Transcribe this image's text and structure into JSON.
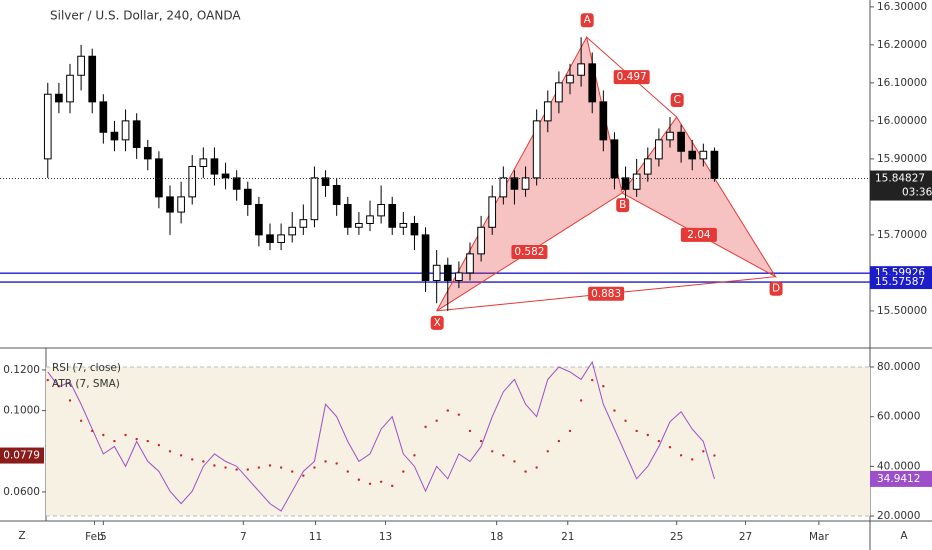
{
  "chart_data": {
    "type": "candlestick",
    "title": "Silver / U.S. Dollar, 240, OANDA",
    "xlim": [
      -4.3,
      74
    ],
    "xticks": [
      {
        "value": 4.2,
        "label": "Feb"
      },
      5,
      {
        "value": 17.6,
        "label": "7"
      },
      {
        "value": 24.1,
        "label": "11"
      },
      {
        "value": 30.4,
        "label": "13"
      },
      {
        "value": 40.4,
        "label": "18"
      },
      {
        "value": 46.8,
        "label": "21"
      },
      {
        "value": 56.6,
        "label": "25"
      },
      {
        "value": 62.8,
        "label": "27"
      },
      {
        "value": 69.4,
        "label": "Mar"
      }
    ],
    "ylim": [
      15.405,
      16.318
    ],
    "yticks": [
      {
        "value": 15.5,
        "label": "15.50000"
      },
      {
        "value": 15.7,
        "label": "15.70000"
      },
      {
        "value": 15.9,
        "label": "15.90000"
      },
      {
        "value": 16,
        "label": "16.00000"
      },
      {
        "value": 16.1,
        "label": "16.10000"
      },
      {
        "value": 16.2,
        "label": "16.20000"
      },
      {
        "value": 16.3,
        "label": "16.30000"
      }
    ],
    "open": [
      15.9,
      16.07,
      16.05,
      16.12,
      16.17,
      16.05,
      15.97,
      15.95,
      16.0,
      15.93,
      15.9,
      15.8,
      15.76,
      15.8,
      15.88,
      15.9,
      15.86,
      15.85,
      15.82,
      15.78,
      15.7,
      15.68,
      15.7,
      15.72,
      15.74,
      15.85,
      15.83,
      15.78,
      15.72,
      15.73,
      15.75,
      15.78,
      15.72,
      15.73,
      15.7,
      15.58,
      15.62,
      15.58,
      15.6,
      15.65,
      15.72,
      15.8,
      15.85,
      15.82,
      15.85,
      16.0,
      16.05,
      16.1,
      16.12,
      16.15,
      16.05,
      15.95,
      15.85,
      15.82,
      15.86,
      15.9,
      15.95,
      15.97,
      15.92,
      15.9,
      15.92
    ],
    "high": [
      16.1,
      16.1,
      16.15,
      16.2,
      16.19,
      16.07,
      16.0,
      16.03,
      16.02,
      15.95,
      15.92,
      15.83,
      15.84,
      15.91,
      15.93,
      15.93,
      15.89,
      15.87,
      15.84,
      15.8,
      15.73,
      15.73,
      15.76,
      15.78,
      15.88,
      15.87,
      15.85,
      15.8,
      15.76,
      15.79,
      15.83,
      15.8,
      15.76,
      15.75,
      15.72,
      15.66,
      15.64,
      15.63,
      15.68,
      15.75,
      15.83,
      15.88,
      15.87,
      15.88,
      16.03,
      16.08,
      16.13,
      16.15,
      16.22,
      16.18,
      16.08,
      15.97,
      15.88,
      15.9,
      15.93,
      15.98,
      16.01,
      15.99,
      15.95,
      15.94,
      15.93
    ],
    "low": [
      15.85,
      16.02,
      16.02,
      16.08,
      16.02,
      15.94,
      15.92,
      15.92,
      15.9,
      15.87,
      15.77,
      15.7,
      15.73,
      15.78,
      15.85,
      15.83,
      15.82,
      15.79,
      15.75,
      15.67,
      15.66,
      15.66,
      15.68,
      15.7,
      15.72,
      15.8,
      15.75,
      15.7,
      15.7,
      15.71,
      15.73,
      15.7,
      15.7,
      15.66,
      15.55,
      15.52,
      15.5,
      15.56,
      15.58,
      15.63,
      15.7,
      15.78,
      15.78,
      15.8,
      15.83,
      15.97,
      16.02,
      16.07,
      16.09,
      16.02,
      15.92,
      15.82,
      15.79,
      15.8,
      15.84,
      15.88,
      15.93,
      15.89,
      15.87,
      15.88,
      15.84
    ],
    "close": [
      16.07,
      16.05,
      16.12,
      16.17,
      16.05,
      15.97,
      15.95,
      16.0,
      15.93,
      15.9,
      15.8,
      15.76,
      15.8,
      15.88,
      15.9,
      15.86,
      15.85,
      15.82,
      15.78,
      15.7,
      15.68,
      15.7,
      15.72,
      15.74,
      15.85,
      15.83,
      15.78,
      15.72,
      15.73,
      15.75,
      15.78,
      15.72,
      15.73,
      15.7,
      15.58,
      15.62,
      15.58,
      15.6,
      15.65,
      15.72,
      15.8,
      15.85,
      15.82,
      15.85,
      16.0,
      16.05,
      16.1,
      16.12,
      16.15,
      16.05,
      15.95,
      15.85,
      15.82,
      15.86,
      15.9,
      15.95,
      15.97,
      15.92,
      15.9,
      15.92,
      15.84827
    ],
    "countdown": "03:36",
    "levels": [
      {
        "value": 15.59926,
        "color": "#1c1cc9"
      },
      {
        "value": 15.57587,
        "color": "#1c1cc9"
      }
    ],
    "pattern": {
      "color": "#e53935",
      "points": [
        {
          "label": "X",
          "x": 35.0,
          "y": 15.5
        },
        {
          "label": "A",
          "x": 48.5,
          "y": 16.22
        },
        {
          "label": "B",
          "x": 51.7,
          "y": 15.81
        },
        {
          "label": "C",
          "x": 56.6,
          "y": 16.01
        },
        {
          "label": "D",
          "x": 65.5,
          "y": 15.59
        }
      ],
      "ratios": [
        0.582,
        0.497,
        2.04,
        0.883
      ]
    },
    "rsi": {
      "name": "RSI (7, close)",
      "color": "#9c4fc9",
      "ylim": [
        18.4,
        87.25
      ],
      "yticks": [
        {
          "value": 20,
          "label": "20.0000"
        },
        {
          "value": 40,
          "label": "40.0000"
        },
        {
          "value": 60,
          "label": "60.0000"
        },
        {
          "value": 80,
          "label": "80.0000"
        }
      ],
      "values": [
        78,
        72,
        74,
        65,
        55,
        45,
        48,
        40,
        50,
        42,
        38,
        30,
        25,
        30,
        40,
        45,
        42,
        40,
        35,
        30,
        25,
        22,
        30,
        38,
        42,
        65,
        60,
        50,
        42,
        45,
        55,
        60,
        45,
        40,
        30,
        40,
        35,
        45,
        42,
        48,
        60,
        70,
        75,
        65,
        60,
        75,
        80,
        78,
        75,
        82,
        65,
        55,
        45,
        35,
        40,
        48,
        58,
        62,
        55,
        50,
        34.9412
      ]
    },
    "atr": {
      "name": "ATR (7, SMA)",
      "color": "#c62828",
      "ylim": [
        0.0462,
        0.1303
      ],
      "yticks": [
        {
          "value": 0.06,
          "label": "0.0600"
        },
        {
          "value": 0.1,
          "label": "0.1000"
        },
        {
          "value": 0.12,
          "label": "0.1200"
        }
      ],
      "values": [
        0.115,
        0.112,
        0.105,
        0.095,
        0.09,
        0.088,
        0.085,
        0.088,
        0.086,
        0.085,
        0.083,
        0.08,
        0.078,
        0.076,
        0.075,
        0.073,
        0.072,
        0.071,
        0.071,
        0.072,
        0.073,
        0.072,
        0.07,
        0.068,
        0.072,
        0.075,
        0.074,
        0.07,
        0.066,
        0.064,
        0.065,
        0.063,
        0.07,
        0.078,
        0.092,
        0.095,
        0.1,
        0.098,
        0.09,
        0.085,
        0.08,
        0.078,
        0.075,
        0.07,
        0.072,
        0.08,
        0.085,
        0.09,
        0.105,
        0.115,
        0.112,
        0.1,
        0.095,
        0.09,
        0.088,
        0.085,
        0.082,
        0.078,
        0.076,
        0.08,
        0.0779
      ]
    },
    "corner_labels": [
      "Z",
      "A"
    ]
  }
}
